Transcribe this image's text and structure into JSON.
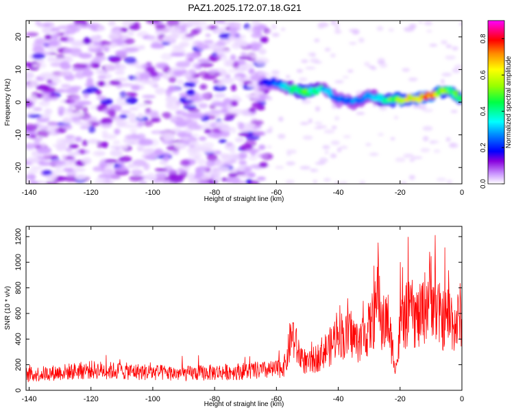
{
  "title": "PAZ1.2025.172.07.18.G21",
  "chart_data": [
    {
      "type": "heatmap",
      "xlabel": "Height of straight line (km)",
      "ylabel": "Frequency (Hz)",
      "xlim": [
        -141,
        0
      ],
      "ylim": [
        -25,
        25
      ],
      "x_ticks": [
        -140,
        -120,
        -100,
        -80,
        -60,
        -40,
        -20,
        0
      ],
      "y_ticks": [
        -20,
        -10,
        0,
        10,
        20
      ],
      "colorbar": {
        "label": "Normalized spectral amplitude",
        "range": [
          0,
          0.9
        ],
        "ticks": [
          0.0,
          0.2,
          0.4,
          0.6,
          0.8
        ],
        "colormap": [
          "#ffffff",
          "#6600cc",
          "#0000ff",
          "#00ffff",
          "#00ff00",
          "#ffff00",
          "#ff8800",
          "#ff0000",
          "#ff00ff"
        ]
      },
      "signal_ridge": {
        "x": [
          -65,
          -60,
          -55,
          -50,
          -45,
          -40,
          -35,
          -30,
          -25,
          -20,
          -15,
          -10,
          -5,
          0
        ],
        "frequency": [
          6,
          6,
          4,
          3,
          4,
          1,
          0,
          2,
          1,
          1,
          1,
          2,
          4,
          1
        ],
        "amplitude": [
          0.15,
          0.25,
          0.4,
          0.5,
          0.35,
          0.25,
          0.3,
          0.3,
          0.45,
          0.6,
          0.7,
          0.75,
          0.5,
          0.45
        ]
      },
      "noise_region": {
        "x_range": [
          -141,
          -63
        ],
        "frequency_range": [
          -25,
          25
        ],
        "amplitude": 0.12
      }
    },
    {
      "type": "line",
      "xlabel": "Height of straight line (km)",
      "ylabel": "SNR (10 * v/v)",
      "xlim": [
        -141,
        0
      ],
      "ylim": [
        0,
        1280
      ],
      "x_ticks": [
        -140,
        -120,
        -100,
        -80,
        -60,
        -40,
        -20,
        0
      ],
      "y_ticks": [
        0,
        200,
        400,
        600,
        800,
        1000,
        1200
      ],
      "color": "#ff0000",
      "x": [
        -141,
        -130,
        -120,
        -110,
        -100,
        -90,
        -80,
        -70,
        -60,
        -57,
        -55,
        -53,
        -50,
        -47,
        -45,
        -42,
        -40,
        -38,
        -36,
        -34,
        -32,
        -30,
        -28,
        -27,
        -26,
        -24,
        -22,
        -21,
        -20,
        -18,
        -16,
        -14,
        -12,
        -10,
        -8,
        -6,
        -4,
        -2,
        0
      ],
      "y": [
        120,
        140,
        160,
        150,
        140,
        130,
        140,
        150,
        160,
        200,
        450,
        300,
        200,
        250,
        300,
        350,
        500,
        400,
        450,
        380,
        420,
        480,
        600,
        850,
        500,
        550,
        250,
        200,
        500,
        580,
        600,
        550,
        650,
        800,
        600,
        550,
        580,
        500,
        620
      ]
    }
  ]
}
